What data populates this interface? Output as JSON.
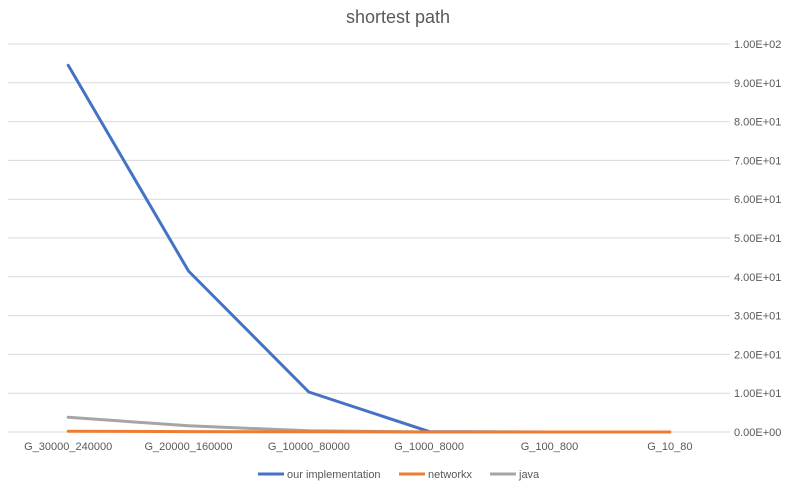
{
  "chart_data": {
    "type": "line",
    "title": "shortest path",
    "categories": [
      "G_30000_240000",
      "G_20000_160000",
      "G_10000_80000",
      "G_1000_8000",
      "G_100_800",
      "G_10_80"
    ],
    "y_ticks": [
      "0.00E+00",
      "1.00E+01",
      "2.00E+01",
      "3.00E+01",
      "4.00E+01",
      "5.00E+01",
      "6.00E+01",
      "7.00E+01",
      "8.00E+01",
      "9.00E+01",
      "1.00E+02"
    ],
    "ylim": [
      0,
      100
    ],
    "y_axis_side": "right",
    "grid": true,
    "legend_position": "bottom",
    "series": [
      {
        "name": "our implementation",
        "color": "#4472c4",
        "values": [
          94.5,
          41.5,
          10.3,
          0.1,
          0.0,
          0.0
        ]
      },
      {
        "name": "networkx",
        "color": "#ed7d31",
        "values": [
          0.2,
          0.1,
          0.05,
          0.0,
          0.0,
          0.0
        ]
      },
      {
        "name": "java",
        "color": "#a5a5a5",
        "values": [
          3.8,
          1.6,
          0.3,
          0.0,
          0.0,
          0.0
        ]
      }
    ]
  }
}
